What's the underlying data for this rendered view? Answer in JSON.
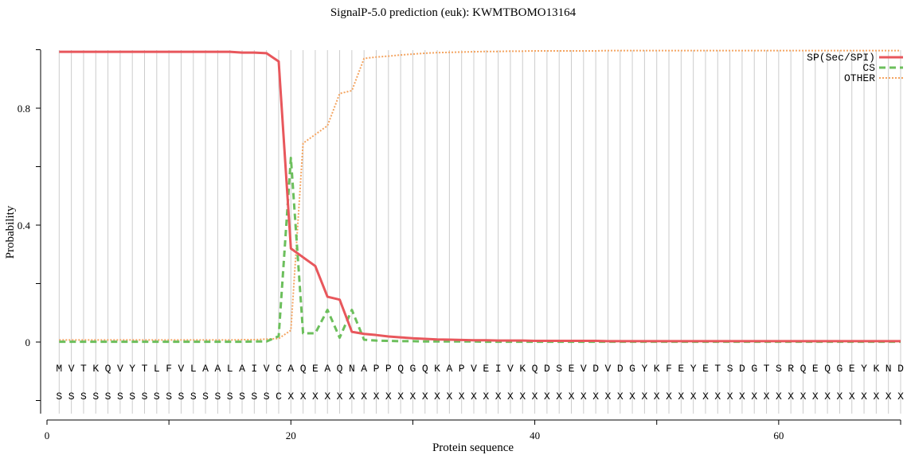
{
  "chart_data": {
    "type": "line",
    "title": "SignalP-5.0 prediction (euk):  KWMTBOMO13164",
    "xlabel": "Protein sequence",
    "ylabel": "Probability",
    "xlim": [
      0,
      70
    ],
    "ylim": [
      -0.2,
      1.0
    ],
    "x_ticks": [
      0,
      20,
      40,
      60
    ],
    "y_ticks": [
      0,
      0.4,
      0.8
    ],
    "grid": "vertical line at every residue",
    "legend_position": "top-right",
    "sequence": [
      "M",
      "V",
      "T",
      "K",
      "Q",
      "V",
      "Y",
      "T",
      "L",
      "F",
      "V",
      "L",
      "A",
      "A",
      "L",
      "A",
      "I",
      "V",
      "C",
      "A",
      "Q",
      "E",
      "A",
      "Q",
      "N",
      "A",
      "P",
      "P",
      "Q",
      "G",
      "Q",
      "K",
      "A",
      "P",
      "V",
      "E",
      "I",
      "V",
      "K",
      "Q",
      "D",
      "S",
      "E",
      "V",
      "D",
      "V",
      "D",
      "G",
      "Y",
      "K",
      "F",
      "E",
      "Y",
      "E",
      "T",
      "S",
      "D",
      "G",
      "T",
      "S",
      "R",
      "Q",
      "E",
      "Q",
      "G",
      "E",
      "Y",
      "K",
      "N",
      "D"
    ],
    "prediction": [
      "S",
      "S",
      "S",
      "S",
      "S",
      "S",
      "S",
      "S",
      "S",
      "S",
      "S",
      "S",
      "S",
      "S",
      "S",
      "S",
      "S",
      "S",
      "C",
      "X",
      "X",
      "X",
      "X",
      "X",
      "X",
      "X",
      "X",
      "X",
      "X",
      "X",
      "X",
      "X",
      "X",
      "X",
      "X",
      "X",
      "X",
      "X",
      "X",
      "X",
      "X",
      "X",
      "X",
      "X",
      "X",
      "X",
      "X",
      "X",
      "X",
      "X",
      "X",
      "X",
      "X",
      "X",
      "X",
      "X",
      "X",
      "X",
      "X",
      "X",
      "X",
      "X",
      "X",
      "X",
      "X",
      "X",
      "X",
      "X",
      "X",
      "X"
    ],
    "series": [
      {
        "name": "SP(Sec/SPI)",
        "color": "#e8575c",
        "style": "solid",
        "values": [
          0.993,
          0.993,
          0.993,
          0.993,
          0.993,
          0.993,
          0.993,
          0.993,
          0.993,
          0.993,
          0.993,
          0.993,
          0.993,
          0.993,
          0.993,
          0.99,
          0.99,
          0.988,
          0.96,
          0.32,
          0.29,
          0.26,
          0.155,
          0.145,
          0.035,
          0.028,
          0.024,
          0.019,
          0.016,
          0.013,
          0.011,
          0.009,
          0.008,
          0.007,
          0.006,
          0.006,
          0.005,
          0.005,
          0.005,
          0.004,
          0.004,
          0.004,
          0.004,
          0.004,
          0.004,
          0.003,
          0.003,
          0.003,
          0.003,
          0.003,
          0.003,
          0.003,
          0.003,
          0.003,
          0.003,
          0.003,
          0.003,
          0.003,
          0.003,
          0.003,
          0.003,
          0.003,
          0.003,
          0.003,
          0.003,
          0.003,
          0.003,
          0.003,
          0.003,
          0.003
        ]
      },
      {
        "name": "CS",
        "color": "#6cbf5c",
        "style": "dashed",
        "values": [
          0.001,
          0.001,
          0.001,
          0.001,
          0.001,
          0.001,
          0.001,
          0.001,
          0.001,
          0.001,
          0.001,
          0.001,
          0.001,
          0.001,
          0.001,
          0.001,
          0.002,
          0.002,
          0.02,
          0.63,
          0.03,
          0.03,
          0.11,
          0.015,
          0.11,
          0.008,
          0.005,
          0.004,
          0.003,
          0.003,
          0.002,
          0.002,
          0.002,
          0.002,
          0.002,
          0.001,
          0.001,
          0.001,
          0.001,
          0.001,
          0.001,
          0.001,
          0.001,
          0.001,
          0.001,
          0.001,
          0.001,
          0.001,
          0.001,
          0.001,
          0.001,
          0.001,
          0.001,
          0.001,
          0.001,
          0.001,
          0.001,
          0.001,
          0.001,
          0.001,
          0.001,
          0.001,
          0.001,
          0.001,
          0.001,
          0.001,
          0.001,
          0.001,
          0.001,
          0.001
        ]
      },
      {
        "name": "OTHER",
        "color": "#f4a460",
        "style": "dotted",
        "values": [
          0.007,
          0.007,
          0.007,
          0.007,
          0.007,
          0.007,
          0.007,
          0.007,
          0.007,
          0.007,
          0.007,
          0.007,
          0.007,
          0.007,
          0.007,
          0.008,
          0.008,
          0.01,
          0.012,
          0.04,
          0.68,
          0.71,
          0.74,
          0.85,
          0.86,
          0.97,
          0.975,
          0.978,
          0.982,
          0.985,
          0.988,
          0.99,
          0.991,
          0.992,
          0.993,
          0.994,
          0.994,
          0.995,
          0.995,
          0.996,
          0.996,
          0.996,
          0.996,
          0.996,
          0.996,
          0.997,
          0.997,
          0.997,
          0.997,
          0.997,
          0.997,
          0.997,
          0.997,
          0.997,
          0.997,
          0.997,
          0.997,
          0.997,
          0.997,
          0.997,
          0.997,
          0.997,
          0.997,
          0.997,
          0.997,
          0.997,
          0.997,
          0.997,
          0.997,
          0.997
        ]
      }
    ]
  }
}
